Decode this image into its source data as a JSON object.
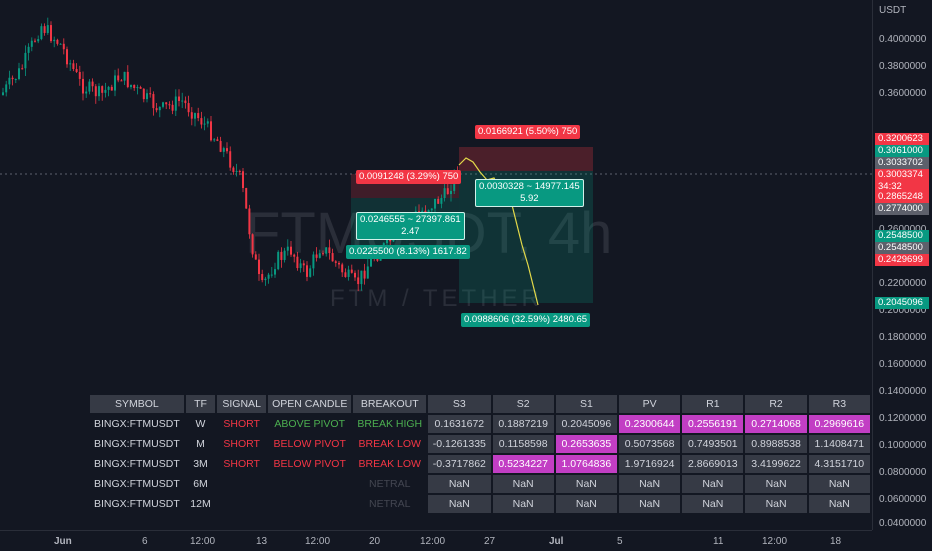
{
  "watermark": {
    "title": "FTMUSDT, 4h",
    "subtitle": "FTM / TETHER"
  },
  "price_axis": {
    "unit": "USDT",
    "ticks": [
      "0.4000000",
      "0.3800000",
      "0.3600000",
      "0.2600000",
      "0.2200000",
      "0.2000000",
      "0.1800000",
      "0.1600000",
      "0.1400000",
      "0.1200000",
      "0.1000000",
      "0.0800000",
      "0.0600000",
      "0.0400000"
    ],
    "tags": {
      "t1": "0.3200623",
      "t2": "0.3061000",
      "t3": "0.3033702",
      "t4a": "0.3003374",
      "t4b": "34:32",
      "t5": "0.2865248",
      "t6": "0.2774000",
      "t7": "0.2548500",
      "t8": "0.2548500",
      "t9": "0.2429699",
      "t10": "0.2045096"
    }
  },
  "time_axis": {
    "ticks": [
      "Jun",
      "6",
      "12:00",
      "13",
      "12:00",
      "20",
      "12:00",
      "27",
      "Jul",
      "5",
      "11",
      "12:00",
      "18"
    ]
  },
  "chart_labels": {
    "short_stop": "0.0166921 (5.50%) 750",
    "long_stop": "0.0091248 (3.29%) 750",
    "long_entry_line1": "0.0246555 ~ 27397.861",
    "long_entry_line2": "2.47",
    "long_target": "0.0225500 (8.13%) 1617.82",
    "short_entry_line1": "0.0030328 ~ 14977.145",
    "short_entry_line2": "5.92",
    "short_target": "0.0988606 (32.59%) 2480.65"
  },
  "colors": {
    "up": "#089981",
    "down": "#f23645",
    "highlight": "#c23ec4",
    "projection": "#e3d949"
  },
  "table": {
    "headers": [
      "SYMBOL",
      "TF",
      "SIGNAL",
      "OPEN CANDLE",
      "BREAKOUT",
      "S3",
      "S2",
      "S1",
      "PV",
      "R1",
      "R2",
      "R3"
    ],
    "rows": [
      {
        "symbol": "BINGX:FTMUSDT",
        "tf": "W",
        "signal": "SHORT",
        "open_candle": "ABOVE PIVOT",
        "breakout": "BREAK HIGH",
        "s3": "0.1631672",
        "s2": "0.1887219",
        "s1": "0.2045096",
        "pv": "0.2300644",
        "r1": "0.2556191",
        "r2": "0.2714068",
        "r3": "0.2969616"
      },
      {
        "symbol": "BINGX:FTMUSDT",
        "tf": "M",
        "signal": "SHORT",
        "open_candle": "BELOW PIVOT",
        "breakout": "BREAK LOW",
        "s3": "-0.1261335",
        "s2": "0.1158598",
        "s1": "0.2653635",
        "pv": "0.5073568",
        "r1": "0.7493501",
        "r2": "0.8988538",
        "r3": "1.1408471"
      },
      {
        "symbol": "BINGX:FTMUSDT",
        "tf": "3M",
        "signal": "SHORT",
        "open_candle": "BELOW PIVOT",
        "breakout": "BREAK LOW",
        "s3": "-0.3717862",
        "s2": "0.5234227",
        "s1": "1.0764836",
        "pv": "1.9716924",
        "r1": "2.8669013",
        "r2": "3.4199622",
        "r3": "4.3151710"
      },
      {
        "symbol": "BINGX:FTMUSDT",
        "tf": "6M",
        "signal": "",
        "open_candle": "",
        "breakout": "NETRAL",
        "s3": "NaN",
        "s2": "NaN",
        "s1": "NaN",
        "pv": "NaN",
        "r1": "NaN",
        "r2": "NaN",
        "r3": "NaN"
      },
      {
        "symbol": "BINGX:FTMUSDT",
        "tf": "12M",
        "signal": "",
        "open_candle": "",
        "breakout": "NETRAL",
        "s3": "NaN",
        "s2": "NaN",
        "s1": "NaN",
        "pv": "NaN",
        "r1": "NaN",
        "r2": "NaN",
        "r3": "NaN"
      }
    ]
  }
}
